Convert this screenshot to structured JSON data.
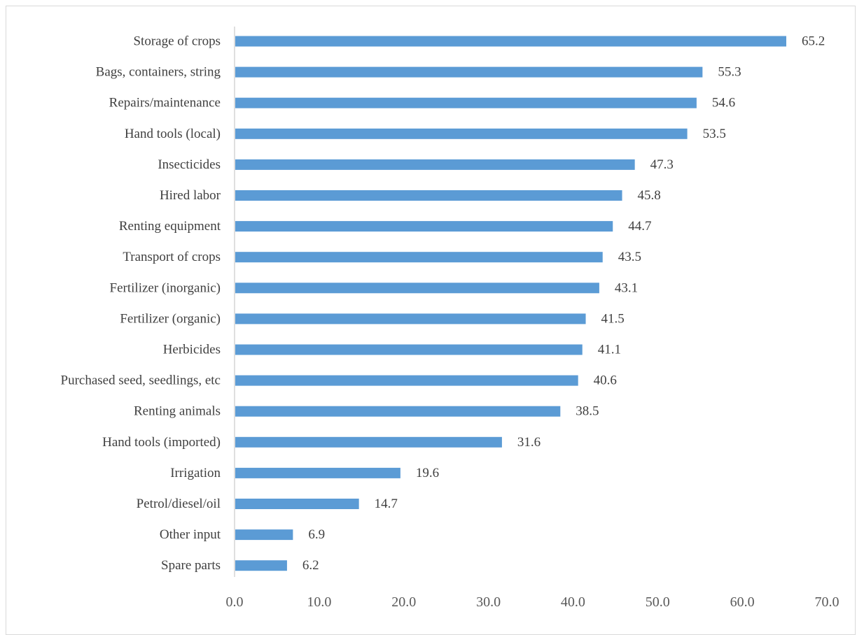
{
  "chart_data": {
    "type": "bar",
    "orientation": "horizontal",
    "title": "",
    "xlabel": "",
    "ylabel": "",
    "xlim": [
      0,
      70
    ],
    "x_ticks": [
      "0.0",
      "10.0",
      "20.0",
      "30.0",
      "40.0",
      "50.0",
      "60.0",
      "70.0"
    ],
    "categories": [
      "Storage of crops",
      "Bags, containers, string",
      "Repairs/maintenance",
      "Hand tools (local)",
      "Insecticides",
      "Hired labor",
      "Renting equipment",
      "Transport of crops",
      "Fertilizer (inorganic)",
      "Fertilizer (organic)",
      "Herbicides",
      "Purchased seed, seedlings, etc",
      "Renting animals",
      "Hand tools (imported)",
      "Irrigation",
      "Petrol/diesel/oil",
      "Other input ",
      "Spare parts"
    ],
    "values": [
      65.2,
      55.3,
      54.6,
      53.5,
      47.3,
      45.8,
      44.7,
      43.5,
      43.1,
      41.5,
      41.1,
      40.6,
      38.5,
      31.6,
      19.6,
      14.7,
      6.9,
      6.2
    ],
    "value_labels": [
      "65.2",
      "55.3",
      "54.6",
      "53.5",
      "47.3",
      "45.8",
      "44.7",
      "43.5",
      "43.1",
      "41.5",
      "41.1",
      "40.6",
      "38.5",
      "31.6",
      "19.6",
      "14.7",
      "6.9",
      "6.2"
    ],
    "grid": false,
    "legend": "none",
    "bar_color": "#5b9bd5"
  }
}
